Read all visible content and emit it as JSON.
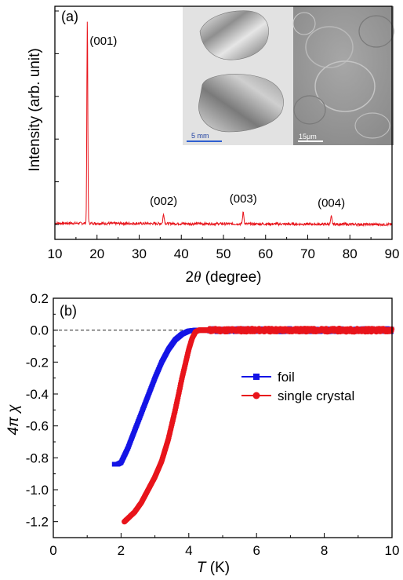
{
  "chart_data": [
    {
      "type": "line",
      "panel_label": "(a)",
      "xlabel_prefix": "2",
      "xlabel_symbol": "θ",
      "xlabel_suffix": " (degree)",
      "ylabel": "Intensity (arb. unit)",
      "xlim": [
        10,
        90
      ],
      "x_ticks": [
        10,
        20,
        30,
        40,
        50,
        60,
        70,
        80,
        90
      ],
      "ylim": [
        0,
        100
      ],
      "color": "#e8141b",
      "peaks": [
        {
          "label": "(001)",
          "x": 17.7,
          "y": 96
        },
        {
          "label": "(002)",
          "x": 35.8,
          "y": 4.5
        },
        {
          "label": "(003)",
          "x": 54.7,
          "y": 5.5
        },
        {
          "label": "(004)",
          "x": 75.6,
          "y": 3.5
        }
      ],
      "inset": {
        "left_scalebar": "5 mm",
        "right_scalebar": "15μm"
      }
    },
    {
      "type": "line",
      "panel_label": "(b)",
      "xlabel_symbol": "T",
      "xlabel_suffix": " (K)",
      "ylabel": "4π χ",
      "xlim": [
        0,
        10
      ],
      "ylim": [
        -1.3,
        0.2
      ],
      "x_ticks": [
        0,
        2,
        4,
        6,
        8,
        10
      ],
      "y_ticks": [
        0.2,
        0.0,
        -0.2,
        -0.4,
        -0.6,
        -0.8,
        -1.0,
        -1.2
      ],
      "y_tick_labels": [
        "0.2",
        "0.0",
        "-0.2",
        "-0.4",
        "-0.6",
        "-0.8",
        "-1.0",
        "-1.2"
      ],
      "reference_line_y": 0.0,
      "series": [
        {
          "name": "foil",
          "color": "#1414e6",
          "marker": "square",
          "x": [
            1.8,
            1.9,
            2.0,
            2.2,
            2.4,
            2.6,
            2.8,
            3.0,
            3.2,
            3.4,
            3.6,
            3.8,
            4.0,
            4.2,
            4.4,
            5.0,
            6.0,
            7.0,
            8.0,
            9.0,
            10.0
          ],
          "y": [
            -0.84,
            -0.84,
            -0.83,
            -0.74,
            -0.63,
            -0.52,
            -0.41,
            -0.3,
            -0.2,
            -0.12,
            -0.06,
            -0.025,
            -0.005,
            0.0,
            0.0,
            0.0,
            0.0,
            0.0,
            0.0,
            0.0,
            0.0
          ]
        },
        {
          "name": "single crystal",
          "color": "#e8141b",
          "marker": "circle",
          "x": [
            2.1,
            2.2,
            2.4,
            2.6,
            2.8,
            3.0,
            3.2,
            3.4,
            3.6,
            3.8,
            4.0,
            4.1,
            4.2,
            4.3,
            4.5,
            5.0,
            6.0,
            7.0,
            8.0,
            9.0,
            10.0
          ],
          "y": [
            -1.2,
            -1.18,
            -1.14,
            -1.08,
            -1.0,
            -0.92,
            -0.82,
            -0.68,
            -0.5,
            -0.3,
            -0.12,
            -0.05,
            -0.01,
            0.0,
            0.0,
            0.0,
            0.0,
            0.0,
            0.0,
            0.0,
            0.0
          ]
        }
      ]
    }
  ]
}
